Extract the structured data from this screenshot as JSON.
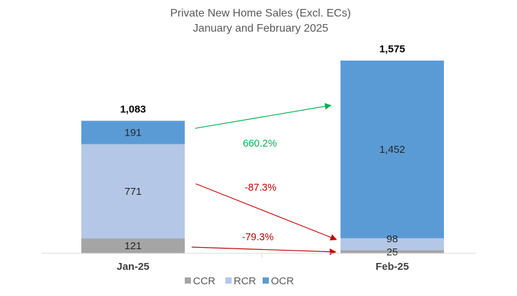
{
  "chart_data": {
    "type": "bar",
    "stacked": true,
    "title": "Private New Home Sales (Excl. ECs)",
    "subtitle": "January and February 2025",
    "categories": [
      "Jan-25",
      "Feb-25"
    ],
    "series": [
      {
        "name": "CCR",
        "values": [
          121,
          25
        ],
        "color": "#a5a5a5"
      },
      {
        "name": "RCR",
        "values": [
          771,
          98
        ],
        "color": "#b4c7e7"
      },
      {
        "name": "OCR",
        "values": [
          191,
          1452
        ],
        "color": "#5b9bd5"
      }
    ],
    "totals": [
      "1,083",
      "1,575"
    ],
    "value_labels": [
      [
        "121",
        "771",
        "191"
      ],
      [
        "25",
        "98",
        "1,452"
      ]
    ],
    "changes": [
      {
        "series": "OCR",
        "label": "660.2%",
        "color": "#00b050"
      },
      {
        "series": "RCR",
        "label": "-87.3%",
        "color": "#c00000"
      },
      {
        "series": "CCR",
        "label": "-79.3%",
        "color": "#c00000"
      }
    ],
    "ylim": [
      0,
      1800
    ],
    "grid": false,
    "legend_position": "bottom"
  }
}
